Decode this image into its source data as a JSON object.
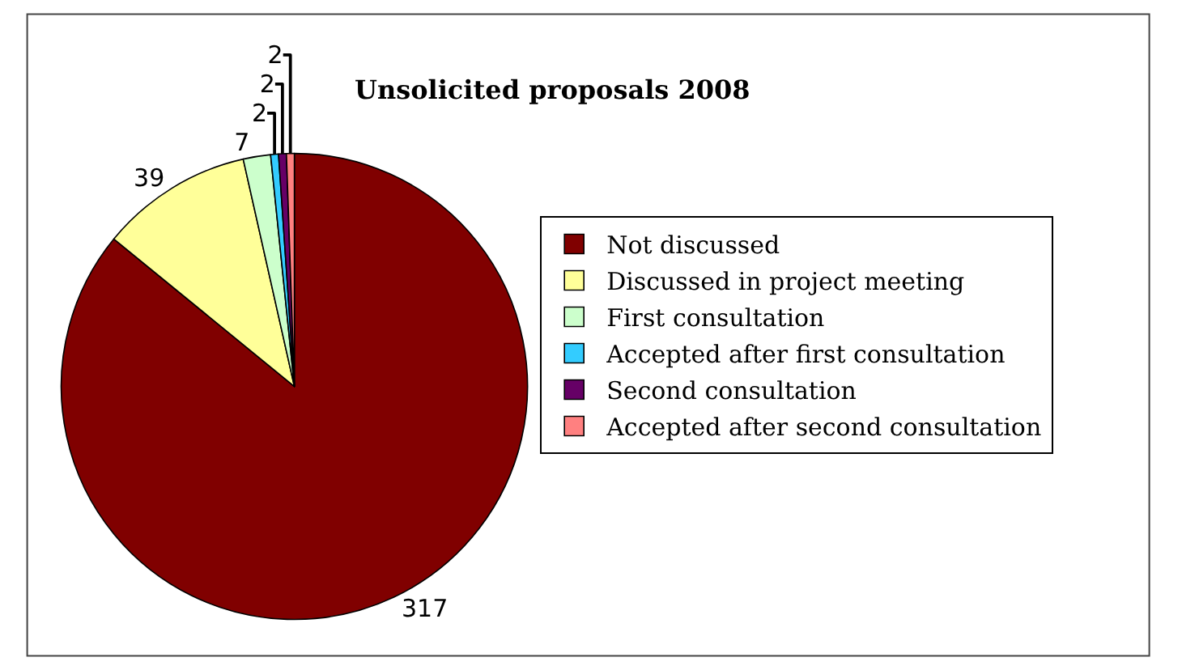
{
  "chart_data": {
    "type": "pie",
    "title": "Unsolicited proposals 2008",
    "categories": [
      "Not discussed",
      "Discussed in project meeting",
      "First consultation",
      "Accepted after first consultation",
      "Second consultation",
      "Accepted after second consultation"
    ],
    "values": [
      317,
      39,
      7,
      2,
      2,
      2
    ],
    "colors": [
      "#800000",
      "#ffff99",
      "#ccffcc",
      "#33ccff",
      "#660066",
      "#ff8080"
    ],
    "data_labels": true,
    "legend": "right"
  }
}
